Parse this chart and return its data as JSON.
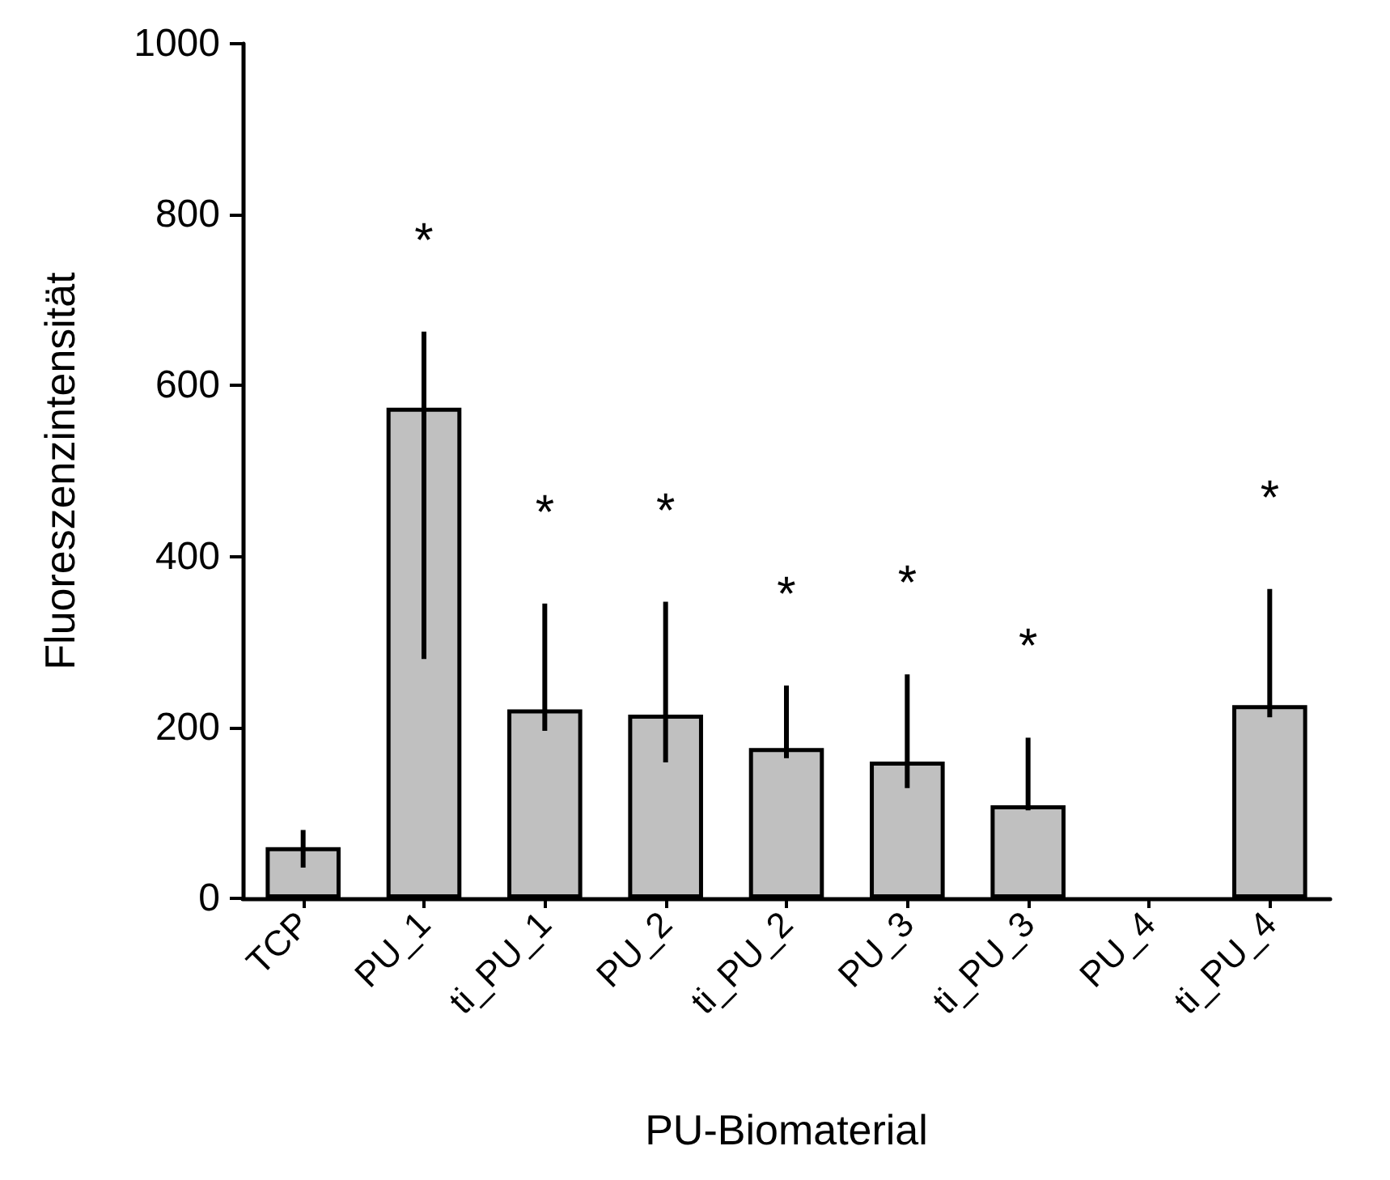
{
  "chart_data": {
    "type": "bar",
    "xlabel": "PU-Biomaterial",
    "ylabel": "Fluoreszenzintensität",
    "categories": [
      "TCP",
      "PU_1",
      "ti_PU_1",
      "PU_2",
      "ti_PU_2",
      "PU_3",
      "ti_PU_3",
      "PU_4",
      "ti_PU_4"
    ],
    "values": [
      60,
      574,
      221,
      215,
      176,
      160,
      109,
      null,
      226
    ],
    "errors": [
      [
        36,
        80
      ],
      [
        280,
        663
      ],
      [
        196,
        345
      ],
      [
        159,
        347
      ],
      [
        164,
        249
      ],
      [
        129,
        262
      ],
      [
        103,
        188
      ],
      null,
      [
        212,
        362
      ]
    ],
    "color": "#c0c0c0",
    "ylim": [
      0,
      1000
    ],
    "yticks": [
      0,
      200,
      400,
      600,
      800,
      1000
    ],
    "grid": false,
    "annotations": [
      "*",
      "*",
      "*",
      "*",
      "*",
      "*",
      "*"
    ]
  }
}
